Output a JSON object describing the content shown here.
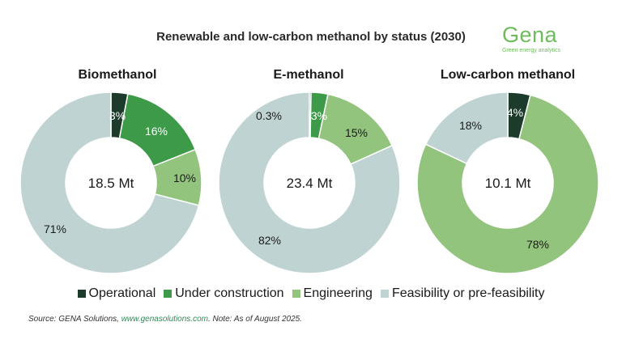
{
  "title": "Renewable and low-carbon methanol by status (2030)",
  "logo": {
    "word": "Gena",
    "tagline": "Green energy analytics"
  },
  "colors": {
    "operational": "#1d3b2a",
    "under_construction": "#3c9a48",
    "engineering": "#93c47d",
    "feasibility": "#bfd3d3"
  },
  "legend": [
    {
      "label": "Operational",
      "color": "#1d3b2a"
    },
    {
      "label": "Under construction",
      "color": "#3c9a48"
    },
    {
      "label": "Engineering",
      "color": "#93c47d"
    },
    {
      "label": "Feasibility or pre-feasibility",
      "color": "#bfd3d3"
    }
  ],
  "source": {
    "prefix": "Source: GENA Solutions, ",
    "link": "www.genasolutions.com",
    "suffix": ". Note: As of August 2025."
  },
  "chart_data": [
    {
      "type": "pie",
      "donut": true,
      "title": "Biomethanol",
      "center_label": "18.5 Mt",
      "categories": [
        "Operational",
        "Under construction",
        "Engineering",
        "Feasibility or pre-feasibility"
      ],
      "values": [
        3,
        16,
        10,
        71
      ],
      "labels": [
        "3%",
        "16%",
        "10%",
        "71%"
      ]
    },
    {
      "type": "pie",
      "donut": true,
      "title": "E-methanol",
      "center_label": "23.4 Mt",
      "categories": [
        "Operational",
        "Under construction",
        "Engineering",
        "Feasibility or pre-feasibility"
      ],
      "values": [
        0.3,
        3,
        15,
        82
      ],
      "labels": [
        "0.3%",
        "3%",
        "15%",
        "82%"
      ]
    },
    {
      "type": "pie",
      "donut": true,
      "title": "Low-carbon methanol",
      "center_label": "10.1 Mt",
      "categories": [
        "Operational",
        "Under construction",
        "Engineering",
        "Feasibility or pre-feasibility"
      ],
      "values": [
        4,
        0,
        78,
        18
      ],
      "labels": [
        "4%",
        "",
        "78%",
        "18%"
      ]
    }
  ]
}
